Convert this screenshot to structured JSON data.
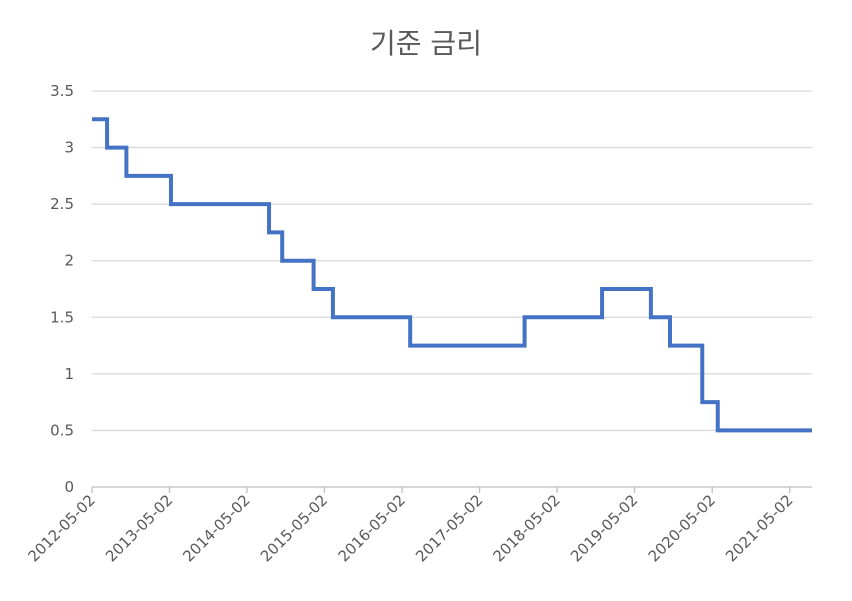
{
  "chart_data": {
    "type": "line",
    "title": "기준 금리",
    "xlabel": "",
    "ylabel": "",
    "ylim": [
      0,
      3.5
    ],
    "yticks": [
      "0",
      "0.5",
      "1",
      "1.5",
      "2",
      "2.5",
      "3",
      "3.5"
    ],
    "xlim": [
      "2012-05-02",
      "2021-08-15"
    ],
    "xticks": [
      "2012-05-02",
      "2013-05-02",
      "2014-05-02",
      "2015-05-02",
      "2016-05-02",
      "2017-05-02",
      "2018-05-02",
      "2019-05-02",
      "2020-05-02",
      "2021-05-02"
    ],
    "grid": "horizontal",
    "legend": "none",
    "line_color": "#4472C4",
    "series": [
      {
        "step": "post",
        "x": [
          "2012-05-02",
          "2012-07-12",
          "2012-10-11",
          "2013-05-09",
          "2014-08-14",
          "2014-10-15",
          "2015-03-12",
          "2015-06-11",
          "2016-06-09",
          "2017-11-30",
          "2018-11-30",
          "2019-07-18",
          "2019-10-16",
          "2020-03-16",
          "2020-05-28",
          "2021-08-15"
        ],
        "y": [
          3.25,
          3.0,
          2.75,
          2.5,
          2.25,
          2.0,
          1.75,
          1.5,
          1.25,
          1.5,
          1.75,
          1.5,
          1.25,
          0.75,
          0.5,
          0.5
        ]
      }
    ]
  }
}
